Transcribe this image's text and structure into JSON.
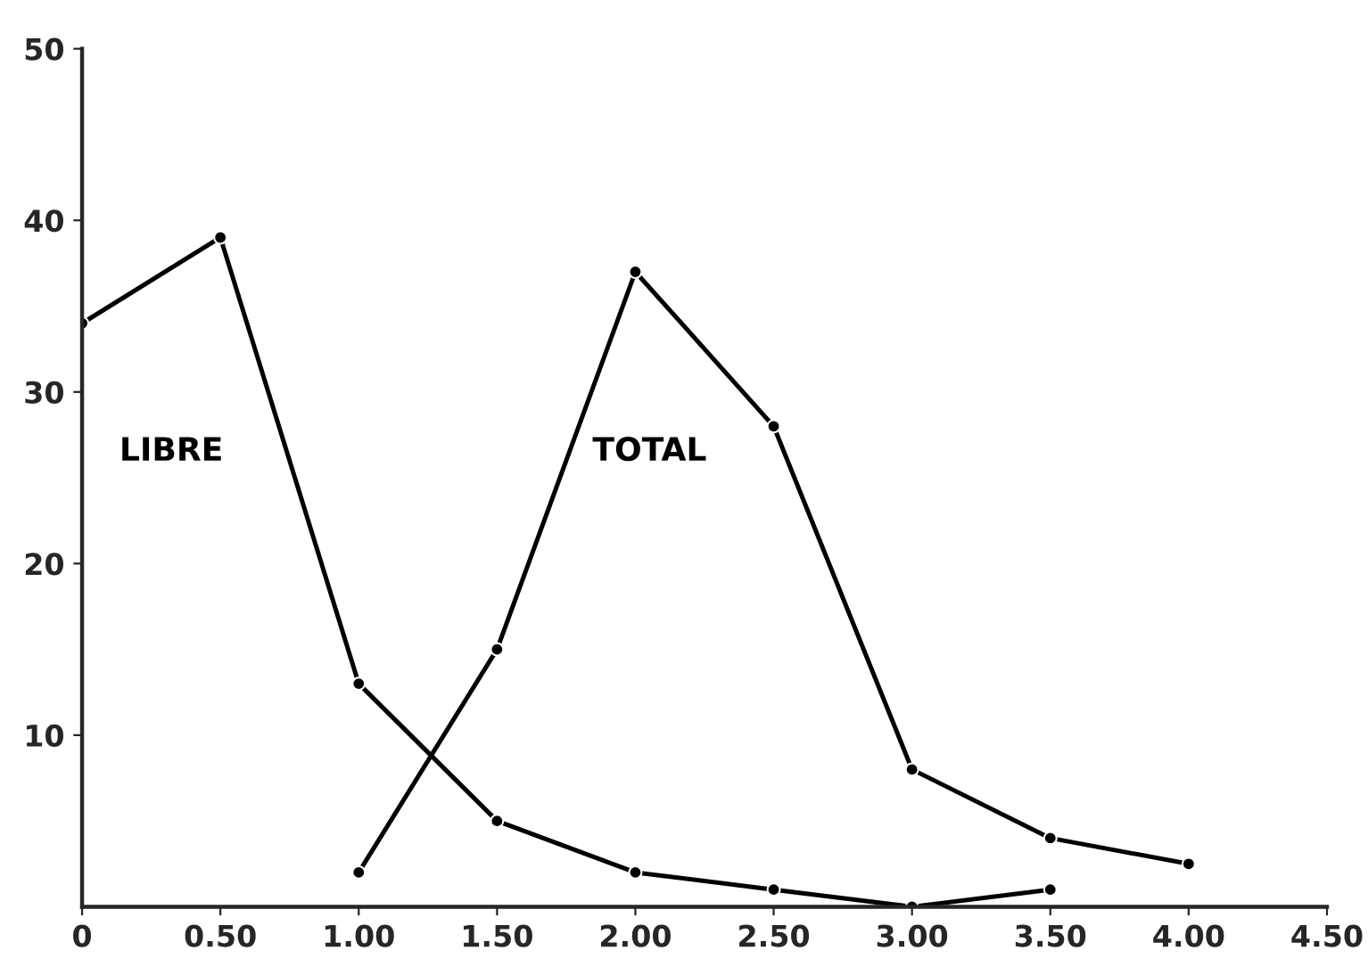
{
  "chart_data": {
    "type": "line",
    "series": [
      {
        "name": "LIBRE",
        "color": "#000000",
        "x": [
          0,
          0.5,
          1,
          1.5,
          2,
          2.5,
          3,
          3.5
        ],
        "values": [
          34,
          39,
          13,
          5,
          2,
          1,
          0,
          1
        ]
      },
      {
        "name": "TOTAL",
        "color": "#000000",
        "x": [
          1,
          1.5,
          2,
          2.5,
          3,
          3.5,
          4
        ],
        "values": [
          2,
          15,
          37,
          28,
          8,
          4,
          2.5
        ]
      }
    ],
    "xlim": [
      0,
      4.5
    ],
    "xticks": [
      0,
      {
        "value": 0.5,
        "label": "0.50"
      },
      {
        "value": 1,
        "label": "1.00"
      },
      {
        "value": 1.5,
        "label": "1.50"
      },
      {
        "value": 2,
        "label": "2.00"
      },
      {
        "value": 2.5,
        "label": "2.50"
      },
      {
        "value": 3,
        "label": "3.00"
      },
      {
        "value": 3.5,
        "label": "3.50"
      },
      {
        "value": 4,
        "label": "4.00"
      },
      {
        "value": 4.5,
        "label": "4.50"
      }
    ],
    "ylim": [
      0,
      50
    ],
    "yticks": [
      10,
      20,
      30,
      40,
      50
    ],
    "grid": false,
    "legend": false,
    "marker": "circle",
    "line_style": "solid"
  }
}
